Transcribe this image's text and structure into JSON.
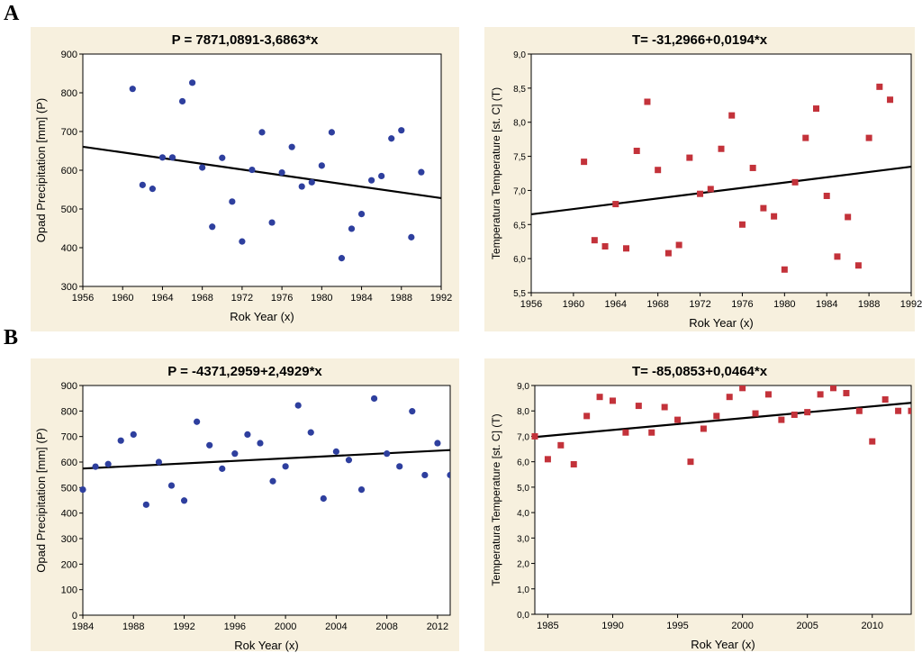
{
  "figure": {
    "section_labels": [
      "A",
      "B"
    ]
  },
  "chart_data": [
    {
      "type": "scatter",
      "id": "a-left",
      "title": "P = 7871,0891-3,6863*x",
      "xlabel": "Rok Year (x)",
      "ylabel": "Opad Precipitation [mm] (P)",
      "xlim": [
        1956,
        1992
      ],
      "ylim": [
        300,
        900
      ],
      "xticks": [
        1956,
        1960,
        1964,
        1968,
        1972,
        1976,
        1980,
        1984,
        1988,
        1992
      ],
      "yticks": [
        300,
        400,
        500,
        600,
        700,
        800,
        900
      ],
      "tick_labels_x": [
        "1956",
        "1960",
        "1964",
        "1968",
        "1972",
        "1976",
        "1980",
        "1984",
        "1988",
        "1992"
      ],
      "tick_labels_y": [
        "300",
        "400",
        "500",
        "600",
        "700",
        "800",
        "900"
      ],
      "marker": "circle",
      "color": "#2e3f9e",
      "grid": false,
      "regression": {
        "intercept": 7871.0891,
        "slope": -3.6863
      },
      "x": [
        1961,
        1962,
        1963,
        1964,
        1965,
        1966,
        1967,
        1968,
        1969,
        1970,
        1971,
        1972,
        1973,
        1974,
        1975,
        1976,
        1977,
        1978,
        1979,
        1980,
        1981,
        1982,
        1983,
        1984,
        1985,
        1986,
        1987,
        1988,
        1989,
        1990
      ],
      "y": [
        810,
        562,
        552,
        633,
        633,
        778,
        826,
        607,
        454,
        632,
        519,
        416,
        601,
        698,
        465,
        594,
        660,
        558,
        569,
        612,
        698,
        373,
        449,
        487,
        574,
        585,
        682,
        703,
        427,
        595
      ]
    },
    {
      "type": "scatter",
      "id": "a-right",
      "title": "T= -31,2966+0,0194*x",
      "xlabel": "Rok Year (x)",
      "ylabel": "Temperatura Temperature [st. C] (T)",
      "xlim": [
        1956,
        1992
      ],
      "ylim": [
        5.5,
        9.0
      ],
      "xticks": [
        1956,
        1960,
        1964,
        1968,
        1972,
        1976,
        1980,
        1984,
        1988,
        1992
      ],
      "yticks": [
        5.5,
        6.0,
        6.5,
        7.0,
        7.5,
        8.0,
        8.5,
        9.0
      ],
      "tick_labels_x": [
        "1956",
        "1960",
        "1964",
        "1968",
        "1972",
        "1976",
        "1980",
        "1984",
        "1988",
        "1992"
      ],
      "tick_labels_y": [
        "5,5",
        "6,0",
        "6,5",
        "7,0",
        "7,5",
        "8,0",
        "8,5",
        "9,0"
      ],
      "marker": "square",
      "color": "#c3323a",
      "grid": false,
      "regression": {
        "intercept": -31.2966,
        "slope": 0.0194
      },
      "x": [
        1961,
        1962,
        1963,
        1964,
        1965,
        1966,
        1967,
        1968,
        1969,
        1970,
        1971,
        1972,
        1973,
        1974,
        1975,
        1976,
        1977,
        1978,
        1979,
        1980,
        1981,
        1982,
        1983,
        1984,
        1985,
        1986,
        1987,
        1988,
        1989,
        1990
      ],
      "y": [
        7.42,
        6.27,
        6.18,
        6.8,
        6.15,
        7.58,
        8.3,
        7.3,
        6.08,
        6.2,
        7.48,
        6.95,
        7.02,
        7.61,
        8.1,
        6.5,
        7.33,
        6.74,
        6.62,
        5.84,
        7.12,
        7.77,
        8.2,
        6.92,
        6.03,
        6.61,
        5.9,
        7.77,
        8.52,
        8.33
      ]
    },
    {
      "type": "scatter",
      "id": "b-left",
      "title": "P = -4371,2959+2,4929*x",
      "xlabel": "Rok Year (x)",
      "ylabel": "Opad Precipitation [mm] (P)",
      "xlim": [
        1984,
        2013
      ],
      "ylim": [
        0,
        900
      ],
      "xticks": [
        1984,
        1988,
        1992,
        1996,
        2000,
        2004,
        2008,
        2012
      ],
      "yticks": [
        0,
        100,
        200,
        300,
        400,
        500,
        600,
        700,
        800,
        900
      ],
      "tick_labels_x": [
        "1984",
        "1988",
        "1992",
        "1996",
        "2000",
        "2004",
        "2008",
        "2012"
      ],
      "tick_labels_y": [
        "0",
        "100",
        "200",
        "300",
        "400",
        "500",
        "600",
        "700",
        "800",
        "900"
      ],
      "marker": "circle",
      "color": "#2e3f9e",
      "grid": false,
      "regression": {
        "intercept": -4371.2959,
        "slope": 2.4929
      },
      "x": [
        1984,
        1985,
        1986,
        1987,
        1988,
        1989,
        1990,
        1991,
        1992,
        1993,
        1994,
        1995,
        1996,
        1997,
        1998,
        1999,
        2000,
        2001,
        2002,
        2003,
        2004,
        2005,
        2006,
        2007,
        2008,
        2009,
        2010,
        2011,
        2012,
        2013
      ],
      "y": [
        492,
        582,
        592,
        684,
        708,
        433,
        600,
        508,
        449,
        758,
        666,
        574,
        633,
        708,
        674,
        525,
        583,
        822,
        716,
        457,
        641,
        608,
        492,
        849,
        633,
        583,
        799,
        549,
        674,
        549
      ]
    },
    {
      "type": "scatter",
      "id": "b-right",
      "title": "T= -85,0853+0,0464*x",
      "xlabel": "Rok Year (x)",
      "ylabel": "Temperatura Temperature [st. C] (T)",
      "xlim": [
        1984,
        2013
      ],
      "ylim": [
        0,
        9.0
      ],
      "xticks": [
        1985,
        1990,
        1995,
        2000,
        2005,
        2010
      ],
      "yticks": [
        0,
        1,
        2,
        3,
        4,
        5,
        6,
        7,
        8,
        9
      ],
      "tick_labels_x": [
        "1985",
        "1990",
        "1995",
        "2000",
        "2005",
        "2010"
      ],
      "tick_labels_y": [
        "0,0",
        "1,0",
        "2,0",
        "3,0",
        "4,0",
        "5,0",
        "6,0",
        "7,0",
        "8,0",
        "9,0"
      ],
      "marker": "square",
      "color": "#c3323a",
      "grid": false,
      "regression": {
        "intercept": -85.0853,
        "slope": 0.0464
      },
      "x": [
        1984,
        1985,
        1986,
        1987,
        1988,
        1989,
        1990,
        1991,
        1992,
        1993,
        1994,
        1995,
        1996,
        1997,
        1998,
        1999,
        2000,
        2001,
        2002,
        2003,
        2004,
        2005,
        2006,
        2007,
        2008,
        2009,
        2010,
        2011,
        2012,
        2013
      ],
      "y": [
        7.0,
        6.1,
        6.65,
        5.9,
        7.8,
        8.55,
        8.4,
        7.15,
        8.2,
        7.15,
        8.15,
        7.65,
        6.0,
        7.3,
        7.8,
        8.55,
        8.9,
        7.9,
        8.65,
        7.65,
        7.85,
        7.95,
        8.65,
        8.9,
        8.7,
        8.0,
        6.8,
        8.45,
        8.0,
        8.0
      ]
    }
  ]
}
